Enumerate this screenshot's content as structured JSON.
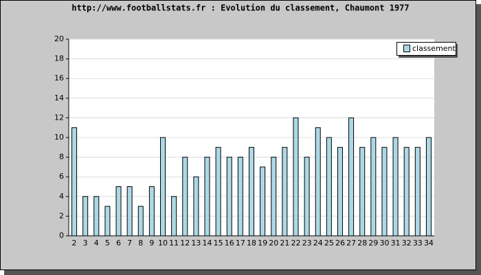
{
  "chart_data": {
    "type": "bar",
    "title": "http://www.footballstats.fr : Evolution du classement, Chaumont 1977",
    "categories": [
      "2",
      "3",
      "4",
      "5",
      "6",
      "7",
      "8",
      "9",
      "10",
      "11",
      "12",
      "13",
      "14",
      "15",
      "16",
      "17",
      "18",
      "19",
      "20",
      "21",
      "22",
      "23",
      "24",
      "25",
      "26",
      "27",
      "28",
      "29",
      "30",
      "31",
      "32",
      "33",
      "34"
    ],
    "series": [
      {
        "name": "classement",
        "color": "#add8e6",
        "values": [
          11,
          4,
          4,
          3,
          5,
          5,
          3,
          5,
          10,
          4,
          8,
          6,
          8,
          9,
          8,
          8,
          9,
          7,
          8,
          9,
          12,
          8,
          11,
          10,
          9,
          12,
          9,
          10,
          9,
          10,
          9,
          9,
          10
        ]
      }
    ],
    "ylim": [
      0,
      20
    ],
    "yticks": [
      0,
      2,
      4,
      6,
      8,
      10,
      12,
      14,
      16,
      18,
      20
    ],
    "grid": true,
    "legend": "top-right"
  }
}
